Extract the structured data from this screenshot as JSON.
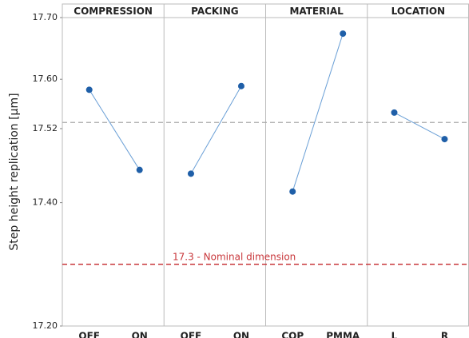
{
  "chart_data": {
    "type": "main-effects",
    "y_label": "Step height replication [µm]",
    "ylim": [
      17.2,
      17.7
    ],
    "yticks": [
      {
        "value": 17.2,
        "label": "17.20"
      },
      {
        "value": 17.4,
        "label": "17.40"
      },
      {
        "value": 17.52,
        "label": "17.52"
      },
      {
        "value": 17.6,
        "label": "17.60"
      },
      {
        "value": 17.7,
        "label": "17.70"
      }
    ],
    "color": "#1f5fa8",
    "line_color": "#6a9fd6",
    "mean": 17.53,
    "mean_color": "#aaaaaa",
    "nominal": 17.3,
    "nominal_color": "#c8363a",
    "nominal_annotation": "17.3 - Nominal dimension",
    "panels": [
      {
        "title": "COMPRESSION",
        "categories": [
          "OFF",
          "ON"
        ],
        "values": [
          17.583,
          17.453
        ]
      },
      {
        "title": "PACKING",
        "categories": [
          "OFF",
          "ON"
        ],
        "values": [
          17.447,
          17.589
        ]
      },
      {
        "title": "MATERIAL",
        "categories": [
          "COP",
          "PMMA"
        ],
        "values": [
          17.418,
          17.674
        ]
      },
      {
        "title": "LOCATION",
        "categories": [
          "L",
          "R"
        ],
        "values": [
          17.546,
          17.503
        ]
      }
    ]
  }
}
